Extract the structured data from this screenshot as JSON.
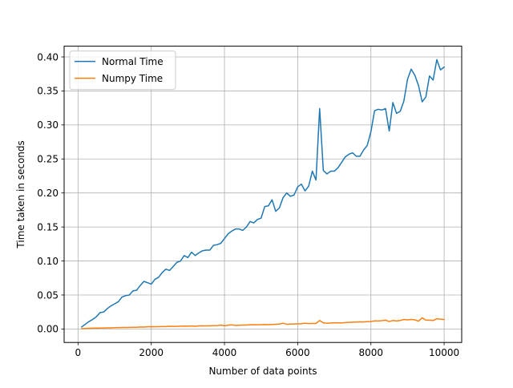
{
  "chart_data": {
    "type": "line",
    "title": "",
    "xlabel": "Number of data points",
    "ylabel": "Time taken in seconds",
    "xlim": [
      -380,
      10480
    ],
    "ylim": [
      -0.0198,
      0.4158
    ],
    "xticks": [
      0,
      2000,
      4000,
      6000,
      8000,
      10000
    ],
    "xtick_labels": [
      "0",
      "2000",
      "4000",
      "6000",
      "8000",
      "10000"
    ],
    "yticks": [
      0.0,
      0.05,
      0.1,
      0.15,
      0.2,
      0.25,
      0.3,
      0.35,
      0.4
    ],
    "ytick_labels": [
      "0.00",
      "0.05",
      "0.10",
      "0.15",
      "0.20",
      "0.25",
      "0.30",
      "0.35",
      "0.40"
    ],
    "grid": true,
    "legend_position": "upper-left",
    "series": [
      {
        "name": "Normal Time",
        "color": "#1f77b4",
        "x": [
          100,
          200,
          300,
          400,
          500,
          600,
          700,
          800,
          900,
          1000,
          1100,
          1200,
          1300,
          1400,
          1500,
          1600,
          1700,
          1800,
          1900,
          2000,
          2100,
          2200,
          2300,
          2400,
          2500,
          2600,
          2700,
          2800,
          2900,
          3000,
          3100,
          3200,
          3300,
          3400,
          3500,
          3600,
          3700,
          3800,
          3900,
          4000,
          4100,
          4200,
          4300,
          4400,
          4500,
          4600,
          4700,
          4800,
          4900,
          5000,
          5100,
          5200,
          5300,
          5400,
          5500,
          5600,
          5700,
          5800,
          5900,
          6000,
          6100,
          6200,
          6300,
          6400,
          6500,
          6600,
          6700,
          6800,
          6900,
          7000,
          7100,
          7200,
          7300,
          7400,
          7500,
          7600,
          7700,
          7800,
          7900,
          8000,
          8100,
          8200,
          8300,
          8400,
          8500,
          8600,
          8700,
          8800,
          8900,
          9000,
          9100,
          9200,
          9300,
          9400,
          9500,
          9600,
          9700,
          9800,
          9900,
          10000
        ],
        "values": [
          0.003,
          0.007,
          0.011,
          0.014,
          0.018,
          0.024,
          0.025,
          0.03,
          0.034,
          0.037,
          0.04,
          0.047,
          0.049,
          0.05,
          0.056,
          0.057,
          0.064,
          0.07,
          0.068,
          0.066,
          0.073,
          0.076,
          0.083,
          0.088,
          0.086,
          0.092,
          0.098,
          0.1,
          0.108,
          0.105,
          0.113,
          0.108,
          0.112,
          0.115,
          0.116,
          0.116,
          0.123,
          0.124,
          0.126,
          0.133,
          0.14,
          0.144,
          0.147,
          0.147,
          0.145,
          0.15,
          0.158,
          0.156,
          0.161,
          0.163,
          0.18,
          0.181,
          0.19,
          0.173,
          0.178,
          0.193,
          0.2,
          0.195,
          0.197,
          0.209,
          0.213,
          0.203,
          0.21,
          0.232,
          0.219,
          0.324,
          0.233,
          0.228,
          0.232,
          0.232,
          0.237,
          0.245,
          0.253,
          0.257,
          0.259,
          0.254,
          0.254,
          0.263,
          0.27,
          0.29,
          0.321,
          0.323,
          0.322,
          0.324,
          0.291,
          0.333,
          0.317,
          0.32,
          0.335,
          0.367,
          0.382,
          0.373,
          0.358,
          0.334,
          0.341,
          0.372,
          0.366,
          0.396,
          0.381,
          0.385
        ]
      },
      {
        "name": "Numpy Time",
        "color": "#ff7f0e",
        "x": [
          100,
          200,
          300,
          400,
          500,
          600,
          700,
          800,
          900,
          1000,
          1100,
          1200,
          1300,
          1400,
          1500,
          1600,
          1700,
          1800,
          1900,
          2000,
          2100,
          2200,
          2300,
          2400,
          2500,
          2600,
          2700,
          2800,
          2900,
          3000,
          3100,
          3200,
          3300,
          3400,
          3500,
          3600,
          3700,
          3800,
          3900,
          4000,
          4100,
          4200,
          4300,
          4400,
          4500,
          4600,
          4700,
          4800,
          4900,
          5000,
          5100,
          5200,
          5300,
          5400,
          5500,
          5600,
          5700,
          5800,
          5900,
          6000,
          6100,
          6200,
          6300,
          6400,
          6500,
          6600,
          6700,
          6800,
          6900,
          7000,
          7100,
          7200,
          7300,
          7400,
          7500,
          7600,
          7700,
          7800,
          7900,
          8000,
          8100,
          8200,
          8300,
          8400,
          8500,
          8600,
          8700,
          8800,
          8900,
          9000,
          9100,
          9200,
          9300,
          9400,
          9500,
          9600,
          9700,
          9800,
          9900,
          10000
        ],
        "values": [
          0.0005,
          0.0008,
          0.001,
          0.0012,
          0.0013,
          0.0014,
          0.0015,
          0.0016,
          0.0017,
          0.002,
          0.0021,
          0.0022,
          0.0023,
          0.0024,
          0.0025,
          0.0026,
          0.003,
          0.0028,
          0.0032,
          0.0034,
          0.0033,
          0.0034,
          0.0036,
          0.0035,
          0.004,
          0.0038,
          0.0039,
          0.0041,
          0.0043,
          0.0042,
          0.0045,
          0.004,
          0.0046,
          0.0047,
          0.0046,
          0.0048,
          0.0049,
          0.005,
          0.0058,
          0.0048,
          0.0056,
          0.006,
          0.0053,
          0.0055,
          0.0057,
          0.0058,
          0.0062,
          0.0063,
          0.0062,
          0.0064,
          0.0065,
          0.0064,
          0.0067,
          0.007,
          0.0072,
          0.0085,
          0.007,
          0.0072,
          0.0074,
          0.0076,
          0.0078,
          0.0085,
          0.008,
          0.0081,
          0.0082,
          0.0125,
          0.009,
          0.0085,
          0.0088,
          0.009,
          0.0091,
          0.0088,
          0.0095,
          0.0098,
          0.01,
          0.0102,
          0.0105,
          0.0103,
          0.0108,
          0.011,
          0.012,
          0.0118,
          0.0122,
          0.013,
          0.011,
          0.0125,
          0.0118,
          0.0125,
          0.014,
          0.0135,
          0.014,
          0.0135,
          0.0115,
          0.0165,
          0.013,
          0.013,
          0.0125,
          0.015,
          0.0145,
          0.014
        ]
      }
    ]
  }
}
